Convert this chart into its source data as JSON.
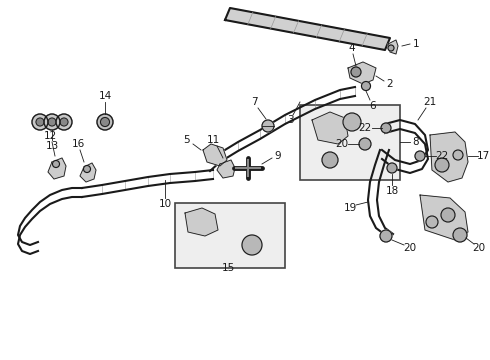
{
  "bg_color": "#ffffff",
  "dark_color": "#1a1a1a",
  "gray_fill": "#cccccc",
  "light_fill": "#e8e8e8",
  "box_fill": "#eeeeee",
  "fig_width": 4.9,
  "fig_height": 3.6,
  "dpi": 100
}
